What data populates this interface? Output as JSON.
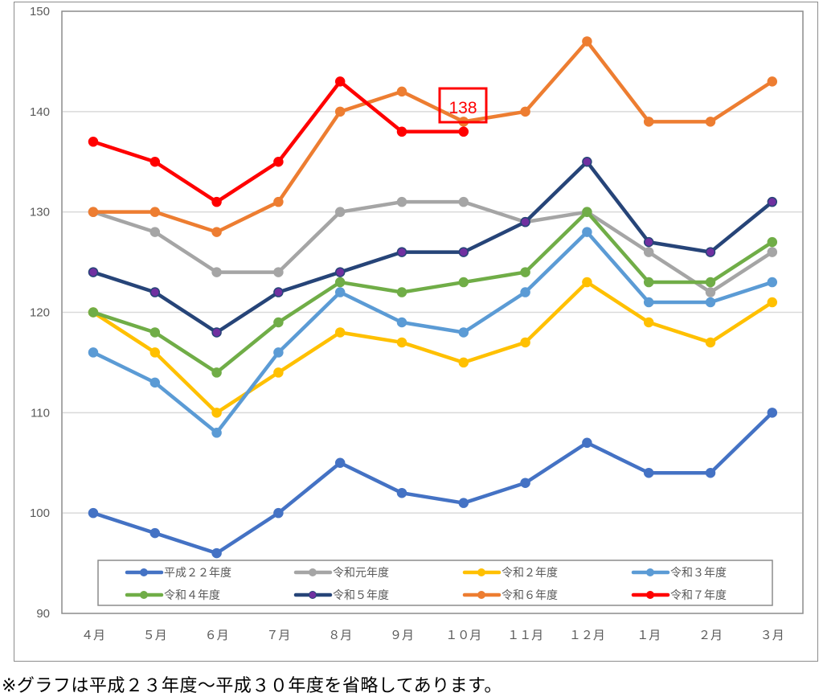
{
  "chart_data": {
    "type": "line",
    "title": "",
    "xlabel": "",
    "ylabel": "",
    "ylim": [
      90,
      150
    ],
    "yticks": [
      90,
      100,
      110,
      120,
      130,
      140,
      150
    ],
    "grid": true,
    "legend_position": "inside-bottom",
    "categories": [
      "４月",
      "５月",
      "６月",
      "７月",
      "８月",
      "９月",
      "１０月",
      "１１月",
      "１２月",
      "１月",
      "２月",
      "３月"
    ],
    "series": [
      {
        "name": "平成２２年度",
        "color": "#4472c4",
        "marker_color": "#4472c4",
        "values": [
          100,
          98,
          96,
          100,
          105,
          102,
          101,
          103,
          107,
          104,
          104,
          110
        ]
      },
      {
        "name": "令和元年度",
        "color": "#a5a5a5",
        "marker_color": "#a5a5a5",
        "values": [
          130,
          128,
          124,
          124,
          130,
          131,
          131,
          129,
          130,
          126,
          122,
          126
        ]
      },
      {
        "name": "令和２年度",
        "color": "#ffc000",
        "marker_color": "#ffc000",
        "values": [
          120,
          116,
          110,
          114,
          118,
          117,
          115,
          117,
          123,
          119,
          117,
          121
        ]
      },
      {
        "name": "令和３年度",
        "color": "#5b9bd5",
        "marker_color": "#5b9bd5",
        "values": [
          116,
          113,
          108,
          116,
          122,
          119,
          118,
          122,
          128,
          121,
          121,
          123
        ]
      },
      {
        "name": "令和４年度",
        "color": "#70ad47",
        "marker_color": "#70ad47",
        "values": [
          120,
          118,
          114,
          119,
          123,
          122,
          123,
          124,
          130,
          123,
          123,
          127
        ]
      },
      {
        "name": "令和５年度",
        "color": "#264478",
        "marker_color": "#7030a0",
        "values": [
          124,
          122,
          118,
          122,
          124,
          126,
          126,
          129,
          135,
          127,
          126,
          131
        ]
      },
      {
        "name": "令和６年度",
        "color": "#ed7d31",
        "marker_color": "#ed7d31",
        "values": [
          130,
          130,
          128,
          131,
          140,
          142,
          139,
          140,
          147,
          139,
          139,
          143
        ]
      },
      {
        "name": "令和７年度",
        "color": "#ff0000",
        "marker_color": "#ff0000",
        "values": [
          137,
          135,
          131,
          135,
          143,
          138,
          138,
          null,
          null,
          null,
          null,
          null
        ]
      }
    ],
    "annotations": [
      {
        "text": "138",
        "series": "令和７年度",
        "category": "１０月",
        "value": 138,
        "boxed": true,
        "color": "#ff0000"
      }
    ]
  },
  "legend": {
    "items": [
      {
        "label": "平成２２年度",
        "color": "#4472c4",
        "marker": "#4472c4"
      },
      {
        "label": "令和元年度",
        "color": "#a5a5a5",
        "marker": "#a5a5a5"
      },
      {
        "label": "令和２年度",
        "color": "#ffc000",
        "marker": "#ffc000"
      },
      {
        "label": "令和３年度",
        "color": "#5b9bd5",
        "marker": "#5b9bd5"
      },
      {
        "label": "令和４年度",
        "color": "#70ad47",
        "marker": "#70ad47"
      },
      {
        "label": "令和５年度",
        "color": "#264478",
        "marker": "#7030a0"
      },
      {
        "label": "令和６年度",
        "color": "#ed7d31",
        "marker": "#ed7d31"
      },
      {
        "label": "令和７年度",
        "color": "#ff0000",
        "marker": "#ff0000"
      }
    ]
  },
  "annotation": {
    "label": "138"
  },
  "footnote": "※グラフは平成２３年度～平成３０年度を省略してあります。"
}
